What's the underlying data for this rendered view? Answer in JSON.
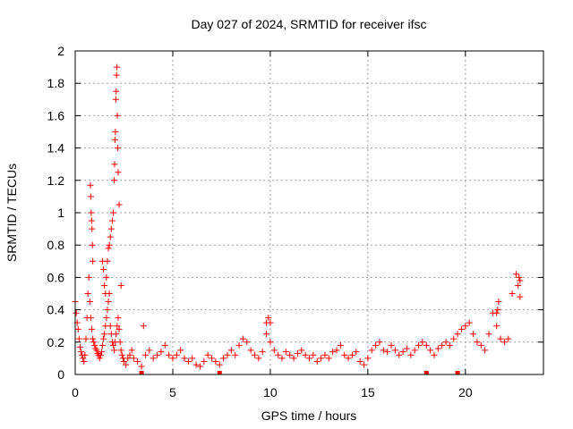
{
  "chart_data": {
    "type": "scatter",
    "title": "Day 027 of 2024, SRMTID for receiver ifsc",
    "xlabel": "GPS time / hours",
    "ylabel": "SRMTID / TECUs",
    "xlim": [
      0,
      24
    ],
    "ylim": [
      0,
      2
    ],
    "xticks": [
      0,
      5,
      10,
      15,
      20
    ],
    "xtick_labels": [
      "0",
      "5",
      "10",
      "15",
      "20"
    ],
    "yticks": [
      0,
      0.2,
      0.4,
      0.6,
      0.8,
      1,
      1.2,
      1.4,
      1.6,
      1.8,
      2
    ],
    "ytick_labels": [
      "0",
      "0.2",
      "0.4",
      "0.6",
      "0.8",
      "1",
      "1.2",
      "1.4",
      "1.6",
      "1.8",
      "2"
    ],
    "grid": true,
    "marker": "+",
    "color": "#ff0000",
    "series": [
      {
        "name": "SRMTID",
        "x": [
          0.0,
          0.05,
          0.1,
          0.15,
          0.2,
          0.25,
          0.3,
          0.35,
          0.4,
          0.45,
          0.5,
          0.55,
          0.6,
          0.65,
          0.7,
          0.75,
          0.8,
          0.85,
          0.9,
          0.95,
          1.0,
          1.05,
          1.1,
          1.15,
          1.2,
          1.25,
          1.3,
          1.35,
          1.4,
          1.45,
          1.5,
          1.55,
          1.6,
          1.65,
          1.7,
          1.75,
          1.8,
          1.85,
          1.9,
          1.95,
          2.0,
          2.05,
          2.1,
          2.15,
          2.2,
          2.25,
          2.3,
          2.35,
          2.4,
          2.45,
          2.5,
          2.6,
          2.7,
          2.8,
          2.9,
          3.0,
          3.2,
          3.4,
          3.6,
          3.8,
          4.0,
          4.2,
          4.4,
          4.6,
          4.8,
          5.0,
          5.2,
          5.4,
          5.6,
          5.8,
          6.0,
          6.2,
          6.4,
          6.6,
          6.8,
          7.0,
          7.2,
          7.4,
          7.6,
          7.8,
          8.0,
          8.2,
          8.4,
          8.6,
          8.8,
          9.0,
          9.2,
          9.4,
          9.6,
          9.8,
          10.0,
          10.2,
          10.4,
          10.6,
          10.8,
          11.0,
          11.2,
          11.4,
          11.6,
          11.8,
          12.0,
          12.2,
          12.4,
          12.6,
          12.8,
          13.0,
          13.2,
          13.4,
          13.6,
          13.8,
          14.0,
          14.2,
          14.4,
          14.6,
          14.8,
          15.0,
          15.2,
          15.4,
          15.6,
          15.8,
          16.0,
          16.2,
          16.4,
          16.6,
          16.8,
          17.0,
          17.2,
          17.4,
          17.6,
          17.8,
          18.0,
          18.2,
          18.4,
          18.6,
          18.8,
          19.0,
          19.2,
          19.4,
          19.6,
          19.8,
          20.0,
          20.2,
          20.4,
          20.6,
          20.8,
          21.0,
          21.2,
          21.4,
          21.6,
          21.8,
          22.0,
          22.2,
          22.4,
          22.6,
          22.8,
          0.78,
          0.8,
          0.82,
          0.84,
          0.86,
          0.88,
          0.9,
          1.4,
          1.45,
          1.5,
          1.55,
          1.6,
          1.65,
          1.7,
          1.75,
          1.8,
          1.85,
          1.9,
          1.95,
          2.0,
          2.02,
          2.04,
          2.06,
          2.08,
          2.1,
          2.12,
          2.14,
          2.16,
          2.18,
          2.2,
          2.25,
          2.35,
          3.5,
          9.8,
          9.9,
          10.0,
          21.6,
          21.65,
          21.7,
          22.7,
          22.75,
          22.8
        ],
        "y": [
          0.45,
          0.38,
          0.32,
          0.28,
          0.22,
          0.17,
          0.14,
          0.12,
          0.1,
          0.08,
          0.12,
          0.22,
          0.35,
          0.5,
          0.6,
          0.45,
          0.35,
          0.28,
          0.22,
          0.2,
          0.18,
          0.16,
          0.15,
          0.13,
          0.12,
          0.1,
          0.12,
          0.14,
          0.18,
          0.22,
          0.25,
          0.3,
          0.35,
          0.4,
          0.45,
          0.5,
          0.3,
          0.25,
          0.2,
          0.18,
          0.15,
          0.2,
          0.25,
          0.3,
          0.35,
          0.28,
          0.2,
          0.15,
          0.12,
          0.1,
          0.08,
          0.06,
          0.1,
          0.12,
          0.15,
          0.1,
          0.08,
          0.05,
          0.12,
          0.15,
          0.1,
          0.12,
          0.14,
          0.18,
          0.12,
          0.1,
          0.12,
          0.15,
          0.1,
          0.08,
          0.1,
          0.06,
          0.05,
          0.08,
          0.12,
          0.1,
          0.08,
          0.06,
          0.1,
          0.12,
          0.15,
          0.12,
          0.18,
          0.22,
          0.2,
          0.15,
          0.12,
          0.1,
          0.14,
          0.25,
          0.2,
          0.15,
          0.12,
          0.1,
          0.14,
          0.12,
          0.1,
          0.13,
          0.15,
          0.12,
          0.1,
          0.12,
          0.08,
          0.1,
          0.12,
          0.1,
          0.14,
          0.15,
          0.18,
          0.12,
          0.1,
          0.12,
          0.14,
          0.08,
          0.06,
          0.1,
          0.15,
          0.18,
          0.2,
          0.15,
          0.14,
          0.18,
          0.15,
          0.12,
          0.14,
          0.16,
          0.12,
          0.15,
          0.18,
          0.2,
          0.18,
          0.15,
          0.12,
          0.16,
          0.18,
          0.2,
          0.18,
          0.22,
          0.25,
          0.28,
          0.3,
          0.32,
          0.25,
          0.2,
          0.18,
          0.15,
          0.25,
          0.38,
          0.3,
          0.22,
          0.2,
          0.22,
          0.5,
          0.62,
          0.48,
          1.17,
          1.1,
          1.0,
          0.95,
          0.9,
          0.8,
          0.7,
          0.7,
          0.65,
          0.55,
          0.5,
          0.6,
          0.7,
          0.78,
          0.8,
          0.85,
          0.9,
          0.95,
          1.0,
          1.2,
          1.3,
          1.45,
          1.5,
          1.7,
          1.75,
          1.85,
          1.9,
          1.6,
          1.4,
          1.25,
          1.05,
          0.55,
          0.3,
          0.32,
          0.35,
          0.32,
          0.38,
          0.4,
          0.45,
          0.55,
          0.6,
          0.58
        ],
        "n_points_approx": 2000
      }
    ],
    "baseline_markers_x": [
      3.4,
      7.4,
      18.0,
      19.6
    ]
  }
}
